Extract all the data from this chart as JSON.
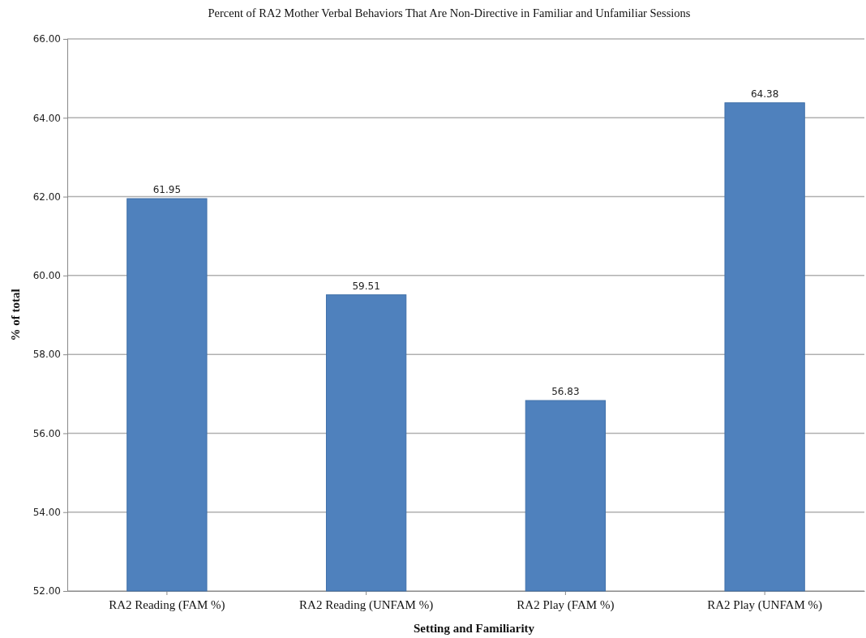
{
  "chart_data": {
    "type": "bar",
    "title": "Percent of RA2 Mother Verbal Behaviors That Are Non-Directive in Familiar and Unfamiliar Sessions",
    "xlabel": "Setting and Familiarity",
    "ylabel": "% of total",
    "categories": [
      "RA2 Reading (FAM %)",
      "RA2 Reading (UNFAM %)",
      "RA2 Play (FAM %)",
      "RA2 Play (UNFAM %)"
    ],
    "values": [
      61.95,
      59.51,
      56.83,
      64.38
    ],
    "color": "#4f81bd",
    "ylim": [
      52,
      66
    ],
    "yticks": [
      {
        "value": 52,
        "label": "52.00"
      },
      {
        "value": 54,
        "label": "54.00"
      },
      {
        "value": 56,
        "label": "56.00"
      },
      {
        "value": 58,
        "label": "58.00"
      },
      {
        "value": 60,
        "label": "60.00"
      },
      {
        "value": 62,
        "label": "62.00"
      },
      {
        "value": 64,
        "label": "64.00"
      },
      {
        "value": 66,
        "label": "66.00"
      }
    ],
    "grid": "y",
    "data_labels": true
  }
}
